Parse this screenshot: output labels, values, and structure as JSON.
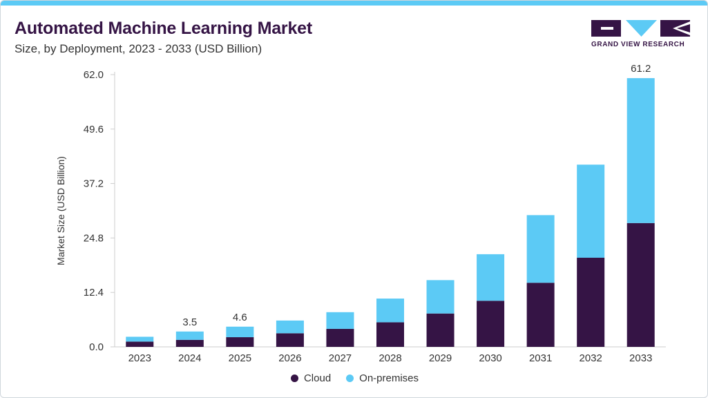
{
  "title": "Automated Machine Learning Market",
  "subtitle": "Size, by Deployment, 2023 - 2033 (USD Billion)",
  "logo": {
    "text": "GRAND VIEW RESEARCH"
  },
  "colors": {
    "cloud": "#351445",
    "onprem": "#5ccaf5",
    "accent": "#5ccaf5"
  },
  "chart_data": {
    "type": "bar",
    "stacked": true,
    "categories": [
      "2023",
      "2024",
      "2025",
      "2026",
      "2027",
      "2028",
      "2029",
      "2030",
      "2031",
      "2032",
      "2033"
    ],
    "series": [
      {
        "name": "Cloud",
        "color": "#351445",
        "values": [
          1.2,
          1.6,
          2.2,
          3.1,
          4.1,
          5.6,
          7.6,
          10.5,
          14.6,
          20.3,
          28.2
        ]
      },
      {
        "name": "On-premises",
        "color": "#5ccaf5",
        "values": [
          1.1,
          1.9,
          2.4,
          2.9,
          3.8,
          5.4,
          7.6,
          10.6,
          15.4,
          21.2,
          33.0
        ]
      }
    ],
    "data_labels": [
      {
        "category": "2024",
        "text": "3.5"
      },
      {
        "category": "2025",
        "text": "4.6"
      },
      {
        "category": "2033",
        "text": "61.2"
      }
    ],
    "ylabel": "Market Size (USD Billion)",
    "xlabel": "",
    "ylim": [
      0,
      62
    ],
    "yticks": [
      "0.0",
      "12.4",
      "24.8",
      "37.2",
      "49.6",
      "62.0"
    ],
    "grid": false,
    "legend_position": "bottom-center"
  }
}
